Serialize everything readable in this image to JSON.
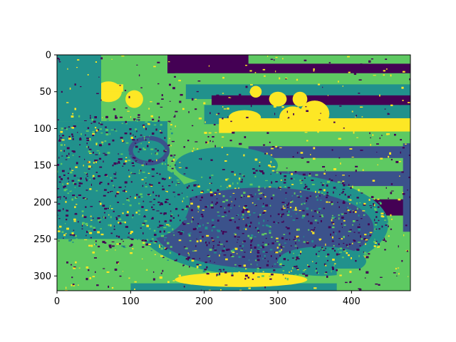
{
  "chart_data": {
    "type": "heatmap",
    "title": "",
    "xlabel": "",
    "ylabel": "",
    "image_width": 480,
    "image_height": 320,
    "xlim": [
      0,
      480
    ],
    "ylim": [
      320,
      0
    ],
    "y_inverted": true,
    "x_ticks": [
      0,
      100,
      200,
      300,
      400
    ],
    "y_ticks": [
      0,
      50,
      100,
      150,
      200,
      250,
      300
    ],
    "colormap": "viridis",
    "levels": 5,
    "level_colors": [
      "#440154",
      "#3b528b",
      "#21918c",
      "#5ec962",
      "#fde725"
    ],
    "grid": false,
    "legend": "none",
    "content": "posterized image of a fish (5 intensity levels)"
  }
}
